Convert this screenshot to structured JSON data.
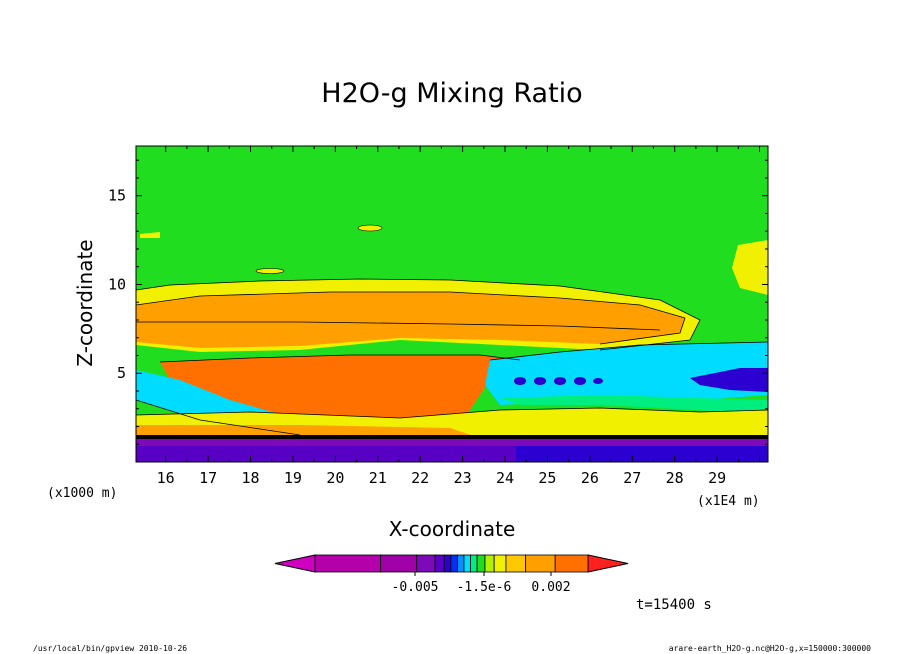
{
  "chart_data": {
    "type": "heatmap",
    "title": "H2O-g Mixing Ratio",
    "xlabel": "X-coordinate",
    "ylabel": "Z-coordinate",
    "x_unit_left": "(x1000 m)",
    "x_unit_right": "(x1E4 m)",
    "xlim": [
      15.3,
      30.2
    ],
    "ylim": [
      0,
      17.8
    ],
    "x_ticks": [
      "16",
      "17",
      "18",
      "19",
      "20",
      "21",
      "22",
      "23",
      "24",
      "25",
      "26",
      "27",
      "28",
      "29"
    ],
    "x_tick_values": [
      16,
      17,
      18,
      19,
      20,
      21,
      22,
      23,
      24,
      25,
      26,
      27,
      28,
      29
    ],
    "y_ticks": [
      "5",
      "10",
      "15"
    ],
    "y_tick_values": [
      5,
      10,
      15
    ],
    "colorbar": {
      "labels": [
        "-0.005",
        "-1.5e-6",
        "0.002"
      ],
      "colors": [
        "#d000c0",
        "#b400ab",
        "#a000a8",
        "#7c0ab8",
        "#5800c4",
        "#2c00d0",
        "#0030f0",
        "#0090ff",
        "#00dcff",
        "#00ee80",
        "#20dd20",
        "#b0f000",
        "#f0f000",
        "#ffc800",
        "#ffa000",
        "#ff7000",
        "#ff2020"
      ]
    },
    "time_label": "t=15400 s",
    "footer_left": "/usr/local/bin/gpview  2010-10-26",
    "footer_right": "arare-earth_H2O-g.nc@H2O-g,x=150000:300000"
  }
}
